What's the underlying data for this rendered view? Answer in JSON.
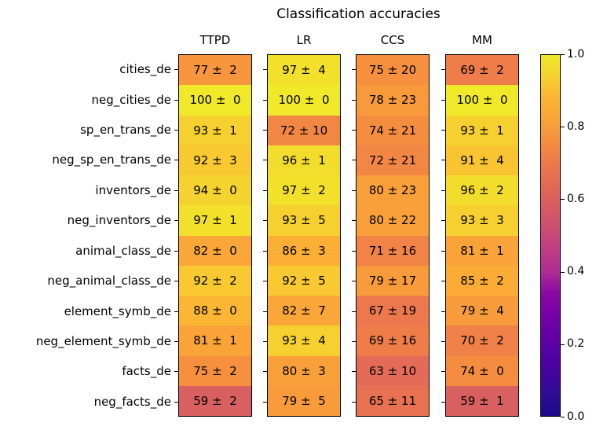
{
  "title": "Classification accuracies",
  "chart_data": {
    "type": "heatmap",
    "title": "Classification accuracies",
    "columns": [
      "TTPD",
      "LR",
      "CCS",
      "MM"
    ],
    "rows": [
      "cities_de",
      "neg_cities_de",
      "sp_en_trans_de",
      "neg_sp_en_trans_de",
      "inventors_de",
      "neg_inventors_de",
      "animal_class_de",
      "neg_animal_class_de",
      "element_symb_de",
      "neg_element_symb_de",
      "facts_de",
      "neg_facts_de"
    ],
    "cell_format": "value ± error",
    "series": [
      {
        "name": "TTPD",
        "values": [
          77,
          100,
          93,
          92,
          94,
          97,
          82,
          92,
          88,
          81,
          75,
          59
        ],
        "errors": [
          2,
          0,
          1,
          3,
          0,
          1,
          0,
          2,
          0,
          1,
          2,
          2
        ]
      },
      {
        "name": "LR",
        "values": [
          97,
          100,
          72,
          96,
          97,
          93,
          86,
          92,
          82,
          93,
          80,
          79
        ],
        "errors": [
          4,
          0,
          10,
          1,
          2,
          5,
          3,
          5,
          7,
          4,
          3,
          5
        ]
      },
      {
        "name": "CCS",
        "values": [
          75,
          78,
          74,
          72,
          80,
          80,
          71,
          79,
          67,
          69,
          63,
          65
        ],
        "errors": [
          20,
          23,
          21,
          21,
          23,
          22,
          16,
          17,
          19,
          16,
          10,
          11
        ]
      },
      {
        "name": "MM",
        "values": [
          69,
          100,
          93,
          91,
          96,
          93,
          81,
          85,
          79,
          70,
          74,
          59
        ],
        "errors": [
          2,
          0,
          1,
          4,
          2,
          3,
          1,
          2,
          4,
          2,
          0,
          1
        ]
      }
    ],
    "colormap": "plasma",
    "value_scale": "percent 0-100 mapped to colorbar 0.0-1.0",
    "colorbar_ticks": [
      "1.0",
      "0.8",
      "0.6",
      "0.4",
      "0.2",
      "0.0"
    ],
    "colorbar_range": [
      0.0,
      1.0
    ],
    "legend_position": "right-colorbar",
    "grid": false
  },
  "palette": {
    "59": "#d96060",
    "63": "#e36b57",
    "65": "#e77150",
    "67": "#ec784d",
    "69": "#ef7d49",
    "70": "#f08148",
    "71": "#f18346",
    "72": "#f28744",
    "74": "#f58d41",
    "75": "#f6903f",
    "77": "#f7963d",
    "78": "#f8993c",
    "79": "#f89c3b",
    "80": "#f9a03a",
    "81": "#f9a339",
    "82": "#faa638",
    "85": "#fbac36",
    "86": "#fbaf35",
    "88": "#fbb733",
    "91": "#f9c431",
    "92": "#f8c930",
    "93": "#f6d02f",
    "94": "#f5d32e",
    "96": "#f3dd2c",
    "97": "#f2e02b",
    "100": "#f0e92a"
  },
  "colorbar_gradient": [
    [
      "0%",
      "#1c0a8a"
    ],
    [
      "6%",
      "#2e0d93"
    ],
    [
      "12%",
      "#44039e"
    ],
    [
      "20%",
      "#5c01a5"
    ],
    [
      "28%",
      "#7701a8"
    ],
    [
      "34%",
      "#8a09a5"
    ],
    [
      "40%",
      "#ae2d93"
    ],
    [
      "46%",
      "#bf3d85"
    ],
    [
      "52%",
      "#cc4e73"
    ],
    [
      "58%",
      "#d75c62"
    ],
    [
      "64%",
      "#e26955"
    ],
    [
      "70%",
      "#ec7a4b"
    ],
    [
      "76%",
      "#f48e40"
    ],
    [
      "82%",
      "#f9a43a"
    ],
    [
      "88%",
      "#fbb434"
    ],
    [
      "93%",
      "#f7cd30"
    ],
    [
      "100%",
      "#f0e92a"
    ]
  ]
}
